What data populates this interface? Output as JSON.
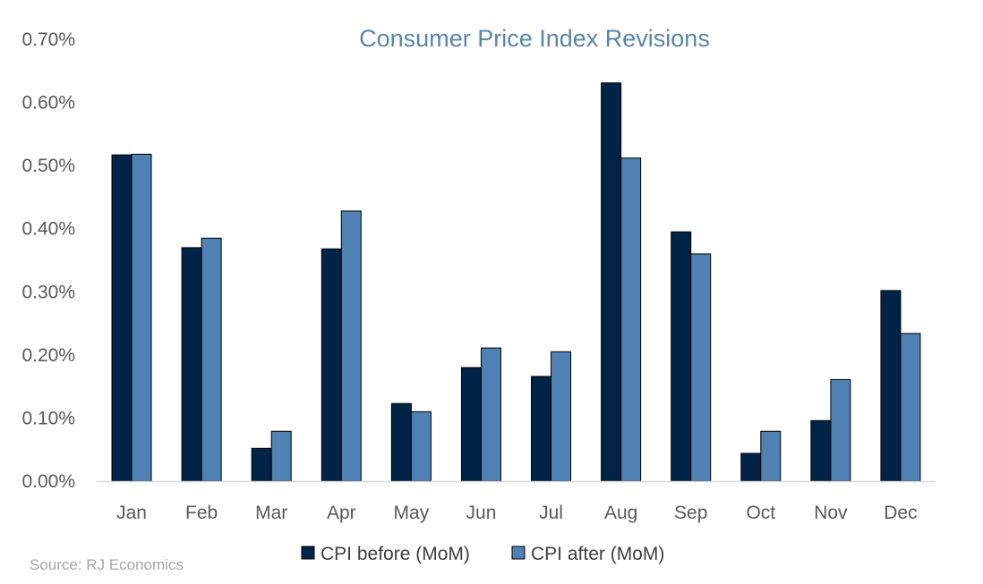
{
  "chart_data": {
    "type": "bar",
    "title": "Consumer Price Index Revisions",
    "xlabel": "",
    "ylabel": "",
    "categories": [
      "Jan",
      "Feb",
      "Mar",
      "Apr",
      "May",
      "Jun",
      "Jul",
      "Aug",
      "Sep",
      "Oct",
      "Nov",
      "Dec"
    ],
    "series": [
      {
        "name": "CPI before (MoM)",
        "color": "#002447",
        "values": [
          0.517,
          0.37,
          0.052,
          0.368,
          0.123,
          0.18,
          0.166,
          0.631,
          0.395,
          0.044,
          0.096,
          0.302
        ]
      },
      {
        "name": "CPI after (MoM)",
        "color": "#4f81b2",
        "values": [
          0.518,
          0.385,
          0.079,
          0.428,
          0.11,
          0.211,
          0.205,
          0.512,
          0.36,
          0.079,
          0.161,
          0.234
        ]
      }
    ],
    "ylim": [
      0,
      0.7
    ],
    "yticks": [
      0.0,
      0.1,
      0.2,
      0.3,
      0.4,
      0.5,
      0.6,
      0.7
    ],
    "ytick_labels": [
      "0.00%",
      "0.10%",
      "0.20%",
      "0.30%",
      "0.40%",
      "0.50%",
      "0.60%",
      "0.70%"
    ],
    "grid": false,
    "legend_position": "bottom-center",
    "source": "Source: RJ Economics"
  },
  "colors": {
    "title": "#5a84ad",
    "axis": "#d9d9d9",
    "bar_outline": "#000000"
  }
}
